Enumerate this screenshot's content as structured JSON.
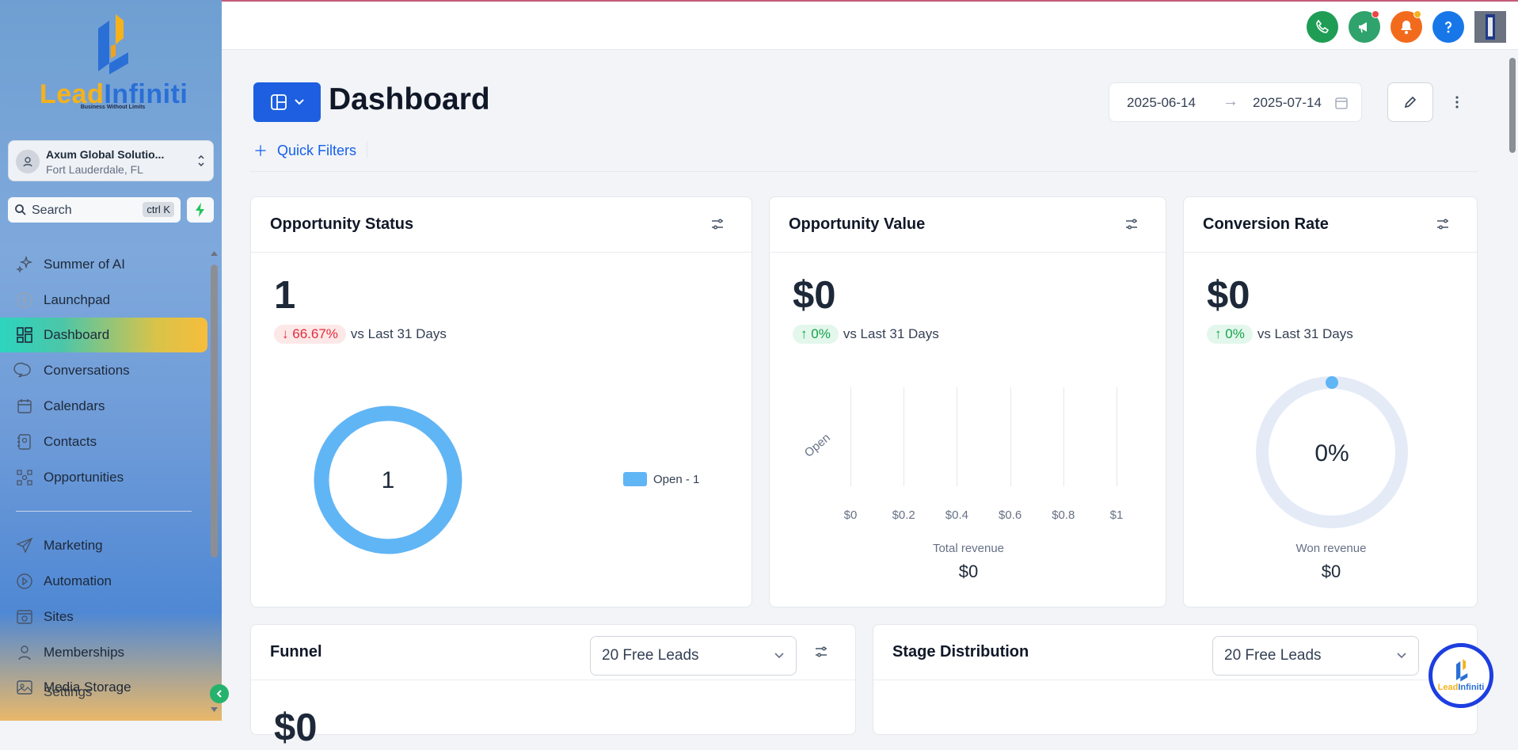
{
  "brand": {
    "word_a": "Lead",
    "word_b": "Infiniti",
    "tagline": "Business Without Limits",
    "colors": {
      "orange": "#f5b21b",
      "blue": "#2a6fd6"
    }
  },
  "account": {
    "name": "Axum Global Solutio...",
    "location": "Fort Lauderdale, FL"
  },
  "search": {
    "placeholder": "Search",
    "shortcut": "ctrl K"
  },
  "sidebar": {
    "items": [
      {
        "label": "Summer of AI",
        "icon": "sparkles-icon"
      },
      {
        "label": "Launchpad",
        "icon": "rocket-icon"
      },
      {
        "label": "Dashboard",
        "icon": "grid-icon",
        "active": true
      },
      {
        "label": "Conversations",
        "icon": "chat-icon"
      },
      {
        "label": "Calendars",
        "icon": "calendar-icon"
      },
      {
        "label": "Contacts",
        "icon": "contacts-icon"
      },
      {
        "label": "Opportunities",
        "icon": "opportunities-icon"
      },
      {
        "label": "Marketing",
        "icon": "send-icon"
      },
      {
        "label": "Automation",
        "icon": "automation-icon"
      },
      {
        "label": "Sites",
        "icon": "sites-icon"
      },
      {
        "label": "Memberships",
        "icon": "memberships-icon"
      },
      {
        "label": "Media Storage",
        "icon": "media-icon"
      },
      {
        "label": "Settings",
        "icon": "gear-icon"
      }
    ]
  },
  "topbar": {
    "buttons": [
      {
        "name": "phone-icon",
        "color": "#1f9d55"
      },
      {
        "name": "megaphone-icon",
        "color": "#2fa36b"
      },
      {
        "name": "bell-icon",
        "color": "#f26b1d"
      },
      {
        "name": "help-icon",
        "color": "#1877e8"
      }
    ]
  },
  "header": {
    "title": "Dashboard",
    "date_start": "2025-06-14",
    "date_end": "2025-07-14",
    "quick_filters": "Quick Filters"
  },
  "cards": {
    "opportunity_status": {
      "title": "Opportunity Status",
      "value": "1",
      "change": "66.67%",
      "direction": "down",
      "comparison": "vs Last 31 Days",
      "donut_center": "1",
      "legend": "Open - 1"
    },
    "opportunity_value": {
      "title": "Opportunity Value",
      "value": "$0",
      "change": "0%",
      "direction": "up",
      "comparison": "vs Last 31 Days",
      "total_label": "Total revenue",
      "total_value": "$0"
    },
    "conversion_rate": {
      "title": "Conversion Rate",
      "value": "$0",
      "change": "0%",
      "direction": "up",
      "comparison": "vs Last 31 Days",
      "gauge_center": "0%",
      "won_label": "Won revenue",
      "won_value": "$0"
    },
    "funnel": {
      "title": "Funnel",
      "select": "20 Free Leads",
      "peek_value": "$0"
    },
    "stage_distribution": {
      "title": "Stage Distribution",
      "select": "20 Free Leads"
    }
  },
  "chart_data": [
    {
      "type": "pie",
      "categories": [
        "Open"
      ],
      "values": [
        1
      ],
      "center_label": "1",
      "legend": "right"
    },
    {
      "type": "bar",
      "orientation": "horizontal",
      "categories": [
        "Open"
      ],
      "values": [
        0
      ],
      "xticks": [
        "$0",
        "$0.2",
        "$0.4",
        "$0.6",
        "$0.8",
        "$1"
      ],
      "xlim": [
        0,
        1
      ],
      "grid": true
    },
    {
      "type": "pie",
      "values": [
        0
      ],
      "center_label": "0%"
    }
  ]
}
